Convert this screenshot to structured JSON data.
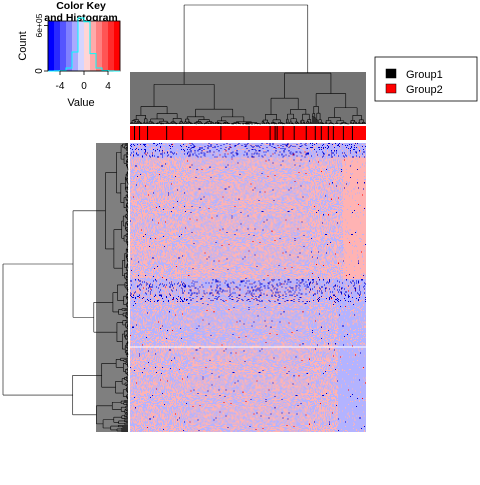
{
  "chart_data": {
    "type": "heatmap",
    "color_key": {
      "title_line1": "Color Key",
      "title_line2": "and Histogram",
      "xlabel": "Value",
      "ylabel": "Count",
      "x_ticks": [
        "-4",
        "0",
        "4"
      ],
      "x_tick_values": [
        -4,
        0,
        4
      ],
      "y_ticks": [
        "0",
        "6e+05"
      ],
      "y_tick_values": [
        0,
        600000
      ],
      "value_range": [
        -6,
        6
      ],
      "colors": [
        "#0000ff",
        "#2a2aff",
        "#5555ff",
        "#8080ff",
        "#aaaaff",
        "#d5d5ff",
        "#ffd5d5",
        "#ffaaaa",
        "#ff8080",
        "#ff5555",
        "#ff2a2a",
        "#ff0000"
      ],
      "histogram_counts": [
        0,
        1000,
        5000,
        40000,
        250000,
        700000,
        650000,
        230000,
        40000,
        6000,
        1000,
        0
      ]
    },
    "legend": {
      "position": "right",
      "entries": [
        {
          "label": "Group1",
          "color": "#000000"
        },
        {
          "label": "Group2",
          "color": "#ff0000"
        }
      ]
    },
    "matrix": {
      "n_rows": 280,
      "n_cols": 235,
      "low_color": "#b3b3ff",
      "high_color": "#ffb3b3",
      "extreme_low_color": "#0000cc",
      "extreme_high_color": "#ff0000",
      "separator_color": "#ffffff"
    },
    "column_groups": {
      "n_cols": 235,
      "group1_columns": [
        4,
        9,
        17,
        36,
        52,
        90,
        118,
        139,
        144,
        146,
        152,
        163,
        175,
        184,
        190,
        197,
        202,
        212,
        221
      ]
    },
    "dendrograms": {
      "column": true,
      "row": true
    }
  }
}
